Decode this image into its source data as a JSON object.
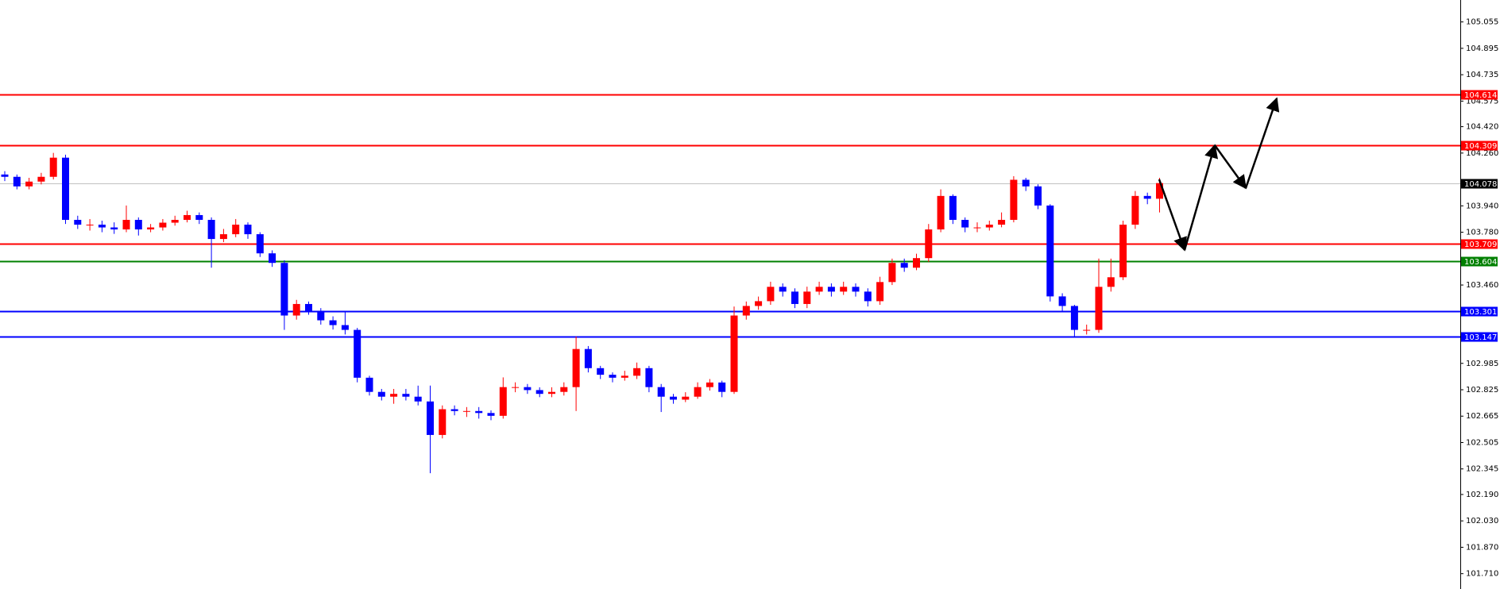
{
  "chart_data": {
    "type": "candlestick",
    "up_color": "#ff0000",
    "down_color": "#0000ff",
    "ylim": [
      101.617,
      105.188
    ],
    "yticks": [
      105.055,
      104.895,
      104.735,
      104.575,
      {
        "value": 104.42,
        "label": "104.420"
      },
      {
        "value": 104.26,
        "label": "104.260"
      },
      {
        "value": 103.94,
        "label": "103.940"
      },
      {
        "value": 103.78,
        "label": "103.780"
      },
      {
        "value": 103.46,
        "label": "103.460"
      },
      102.985,
      102.825,
      102.665,
      102.505,
      102.345,
      {
        "value": 102.19,
        "label": "102.190"
      },
      {
        "value": 102.03,
        "label": "102.030"
      },
      {
        "value": 101.87,
        "label": "101.870"
      },
      {
        "value": 101.71,
        "label": "101.710"
      }
    ],
    "levels": [
      {
        "value": 104.614,
        "color": "#ff0000",
        "tag_color": "#ff0000"
      },
      {
        "value": 104.309,
        "color": "#ff0000",
        "tag_color": "#ff0000"
      },
      {
        "value": 104.078,
        "color": "#c0c0c0",
        "tag_color": "#000000"
      },
      {
        "value": 103.709,
        "color": "#ff0000",
        "tag_color": "#ff0000"
      },
      {
        "value": 103.604,
        "color": "#008000",
        "tag_color": "#008000"
      },
      {
        "value": 103.301,
        "color": "#0000ff",
        "tag_color": "#0000ff"
      },
      {
        "value": 103.147,
        "color": "#0000ff",
        "tag_color": "#0000ff"
      }
    ],
    "open": [
      104.13,
      104.116,
      104.058,
      104.087,
      104.116,
      104.232,
      103.855,
      103.826,
      103.826,
      103.809,
      103.797,
      103.855,
      103.797,
      103.809,
      103.838,
      103.855,
      103.884,
      103.855,
      103.739,
      103.768,
      103.826,
      103.768,
      103.652,
      103.594,
      103.275,
      103.345,
      103.304,
      103.246,
      103.217,
      103.188,
      102.898,
      102.812,
      102.783,
      102.8,
      102.783,
      102.754,
      102.551,
      102.707,
      102.696,
      102.696,
      102.684,
      102.667,
      102.841,
      102.841,
      102.823,
      102.8,
      102.812,
      102.841,
      103.072,
      102.956,
      102.916,
      102.898,
      102.91,
      102.956,
      102.841,
      102.783,
      102.765,
      102.783,
      102.841,
      102.869,
      102.812,
      103.275,
      103.333,
      103.362,
      103.449,
      103.42,
      103.345,
      103.42,
      103.449,
      103.42,
      103.449,
      103.42,
      103.362,
      103.478,
      103.594,
      103.565,
      103.623,
      103.797,
      104.0,
      103.855,
      103.809,
      103.809,
      103.826,
      103.855,
      104.098,
      104.058,
      103.942,
      103.391,
      103.333,
      103.188,
      103.188,
      103.449,
      103.507,
      103.826,
      104.0,
      103.983
    ],
    "high": [
      104.15,
      104.13,
      104.11,
      104.14,
      104.261,
      104.25,
      103.88,
      103.86,
      103.85,
      103.84,
      103.942,
      103.87,
      103.83,
      103.86,
      103.88,
      103.91,
      103.9,
      103.87,
      103.8,
      103.86,
      103.84,
      103.78,
      103.67,
      103.61,
      103.37,
      103.36,
      103.32,
      103.27,
      103.3,
      103.2,
      102.91,
      102.83,
      102.83,
      102.83,
      102.85,
      102.85,
      102.73,
      102.73,
      102.72,
      102.72,
      102.7,
      102.9,
      102.87,
      102.86,
      102.84,
      102.84,
      102.87,
      103.148,
      103.09,
      102.97,
      102.93,
      102.94,
      102.99,
      102.97,
      102.86,
      102.8,
      102.81,
      102.87,
      102.89,
      102.88,
      103.33,
      103.36,
      103.39,
      103.48,
      103.47,
      103.44,
      103.45,
      103.48,
      103.47,
      103.48,
      103.47,
      103.44,
      103.51,
      103.62,
      103.62,
      103.65,
      103.83,
      104.04,
      104.01,
      103.87,
      103.84,
      103.85,
      103.9,
      104.12,
      104.11,
      104.07,
      103.95,
      103.41,
      103.34,
      103.22,
      103.62,
      103.62,
      103.85,
      104.03,
      104.02,
      104.11
    ],
    "low": [
      104.09,
      104.04,
      104.04,
      104.07,
      104.1,
      103.83,
      103.8,
      103.79,
      103.78,
      103.77,
      103.78,
      103.76,
      103.78,
      103.79,
      103.82,
      103.84,
      103.83,
      103.565,
      103.72,
      103.75,
      103.74,
      103.63,
      103.57,
      103.188,
      103.25,
      103.28,
      103.22,
      103.19,
      103.16,
      102.87,
      102.79,
      102.76,
      102.74,
      102.76,
      102.73,
      102.319,
      102.53,
      102.67,
      102.66,
      102.65,
      102.64,
      102.65,
      102.81,
      102.8,
      102.78,
      102.78,
      102.79,
      102.696,
      102.93,
      102.89,
      102.87,
      102.88,
      102.89,
      102.81,
      102.69,
      102.74,
      102.75,
      102.77,
      102.82,
      102.78,
      102.8,
      103.25,
      103.31,
      103.34,
      103.39,
      103.32,
      103.32,
      103.4,
      103.39,
      103.4,
      103.39,
      103.33,
      103.34,
      103.46,
      103.54,
      103.55,
      103.6,
      103.78,
      103.83,
      103.78,
      103.78,
      103.79,
      103.81,
      103.84,
      104.03,
      103.92,
      103.36,
      103.3,
      103.147,
      103.16,
      103.17,
      103.42,
      103.49,
      103.8,
      103.95,
      103.9
    ],
    "close": [
      104.116,
      104.058,
      104.087,
      104.116,
      104.232,
      103.855,
      103.826,
      103.826,
      103.809,
      103.797,
      103.855,
      103.797,
      103.809,
      103.838,
      103.855,
      103.884,
      103.855,
      103.739,
      103.768,
      103.826,
      103.768,
      103.652,
      103.594,
      103.275,
      103.345,
      103.304,
      103.246,
      103.217,
      103.188,
      102.898,
      102.812,
      102.783,
      102.8,
      102.783,
      102.754,
      102.551,
      102.707,
      102.696,
      102.696,
      102.684,
      102.667,
      102.841,
      102.841,
      102.823,
      102.8,
      102.812,
      102.841,
      103.072,
      102.956,
      102.916,
      102.898,
      102.91,
      102.956,
      102.841,
      102.783,
      102.765,
      102.783,
      102.841,
      102.869,
      102.812,
      103.275,
      103.333,
      103.362,
      103.449,
      103.42,
      103.345,
      103.42,
      103.449,
      103.42,
      103.449,
      103.42,
      103.362,
      103.478,
      103.594,
      103.565,
      103.623,
      103.797,
      104.0,
      103.855,
      103.809,
      103.809,
      103.826,
      103.855,
      104.098,
      104.058,
      103.942,
      103.391,
      103.333,
      103.188,
      103.188,
      103.449,
      103.507,
      103.826,
      104.0,
      103.983,
      104.078
    ]
  }
}
